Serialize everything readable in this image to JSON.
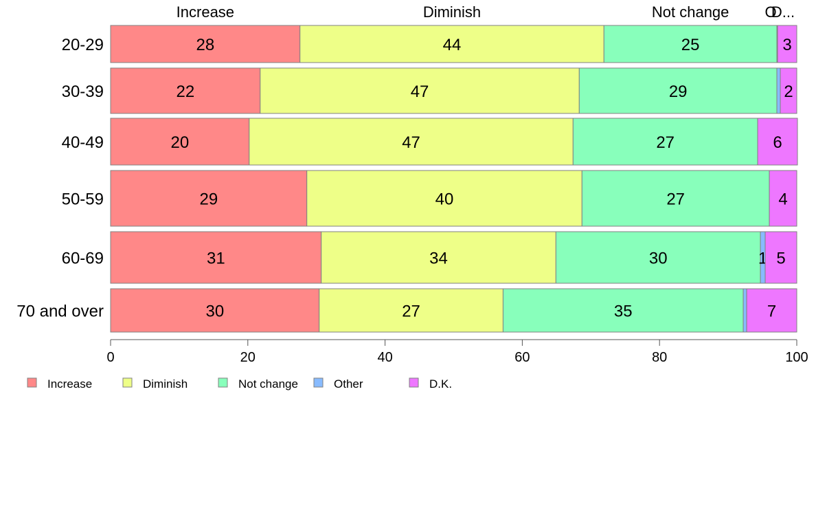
{
  "chart_data": {
    "type": "bar",
    "orientation": "horizontal",
    "stacked": true,
    "categories": [
      "20-29",
      "30-39",
      "40-49",
      "50-59",
      "60-69",
      "70 and over"
    ],
    "series": [
      {
        "name": "Increase",
        "color": "#ff8888",
        "values": [
          27.6,
          21.8,
          20.2,
          28.6,
          30.7,
          30.4
        ],
        "labels": [
          "28",
          "22",
          "20",
          "29",
          "31",
          "30"
        ]
      },
      {
        "name": "Diminish",
        "color": "#eeff88",
        "values": [
          44.3,
          46.5,
          47.2,
          40.1,
          34.2,
          26.8
        ],
        "labels": [
          "44",
          "47",
          "47",
          "40",
          "34",
          "27"
        ]
      },
      {
        "name": "Not change",
        "color": "#88ffbb",
        "values": [
          25.2,
          28.8,
          26.9,
          27.3,
          29.8,
          35.0
        ],
        "labels": [
          "25",
          "29",
          "27",
          "27",
          "30",
          "35"
        ]
      },
      {
        "name": "Other",
        "color": "#88bbff",
        "values": [
          0.1,
          0.5,
          0.0,
          0.0,
          0.7,
          0.5
        ],
        "labels": [
          "",
          "",
          "",
          "",
          "1",
          ""
        ]
      },
      {
        "name": "D.K.",
        "color": "#ee77ff",
        "values": [
          2.8,
          2.4,
          5.8,
          4.0,
          4.6,
          7.3
        ],
        "labels": [
          "3",
          "2",
          "6",
          "4",
          "5",
          "7"
        ]
      }
    ],
    "top_labels": [
      "Increase",
      "Diminish",
      "Not change",
      "Other",
      "D.K."
    ],
    "top_labels_display": [
      "Increase",
      "Diminish",
      "Not change",
      "O",
      "D..."
    ],
    "xlim": [
      0,
      100
    ],
    "xticks": [
      0,
      20,
      40,
      60,
      80,
      100
    ],
    "title": "",
    "xlabel": "",
    "ylabel": "",
    "grid": false,
    "legend": {
      "position": "bottom-left",
      "entries": [
        "Increase",
        "Diminish",
        "Not change",
        "Other",
        "D.K."
      ]
    }
  }
}
